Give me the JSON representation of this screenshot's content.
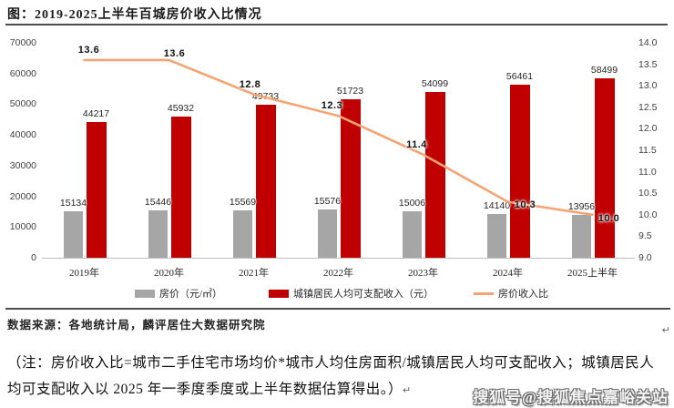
{
  "title": "图：2019-2025上半年百城房价收入比情况",
  "source_line": "数据来源：各地统计局，麟评居住大数据研究院",
  "note": "（注：房价收入比=城市二手住宅市场均价*城市人均住房面积/城镇居民人均可支配收入；城镇居民人均可支配收入以 2025 年一季度季度或上半年数据估算得出。）",
  "return_mark": "↵",
  "watermark": "搜狐号@搜狐焦点嘉峪关站",
  "colors": {
    "house_price_bar": "#A6A6A6",
    "income_bar": "#C00000",
    "ratio_line": "#F4A472",
    "rule": "#4D4D4D"
  },
  "legend": {
    "items": [
      {
        "label": "房价（元/㎡）",
        "swatch": "gray-bar"
      },
      {
        "label": "城镇居民人均可支配收入（元）",
        "swatch": "red-bar"
      },
      {
        "label": "房价收入比",
        "swatch": "orange-line"
      }
    ]
  },
  "chart_data": {
    "type": "bar",
    "subtype": "grouped-bars-with-line",
    "title": "图：2019-2025上半年百城房价收入比情况",
    "categories": [
      "2019年",
      "2020年",
      "2021年",
      "2022年",
      "2023年",
      "2024年",
      "2025上半年"
    ],
    "series": [
      {
        "name": "房价（元/㎡）",
        "type": "bar",
        "axis": "left",
        "color_key": "house_price_bar",
        "values": [
          15134,
          15446,
          15569,
          15576,
          15006,
          14140,
          13956
        ]
      },
      {
        "name": "城镇居民人均可支配收入（元）",
        "type": "bar",
        "axis": "left",
        "color_key": "income_bar",
        "values": [
          44217,
          45932,
          49733,
          51723,
          54099,
          56461,
          58499
        ]
      },
      {
        "name": "房价收入比",
        "type": "line",
        "axis": "right",
        "color_key": "ratio_line",
        "values": [
          13.6,
          13.6,
          12.8,
          12.3,
          11.4,
          10.3,
          10.0
        ]
      }
    ],
    "left_axis": {
      "min": 0,
      "max": 70000,
      "step": 10000,
      "ticks": [
        "0",
        "10000",
        "20000",
        "30000",
        "40000",
        "50000",
        "60000",
        "70000"
      ]
    },
    "right_axis": {
      "min": 9,
      "max": 14,
      "step": 0.5,
      "ticks": [
        "9.0",
        "9.5",
        "10.0",
        "10.5",
        "11.0",
        "11.5",
        "12.0",
        "12.5",
        "13.0",
        "13.5",
        "14.0"
      ]
    },
    "ratio_point_labels": [
      "13.6",
      "13.6",
      "12.8",
      "12.3",
      "11.4",
      "10.3",
      "10.0"
    ],
    "grid": false,
    "legend_position": "bottom"
  }
}
